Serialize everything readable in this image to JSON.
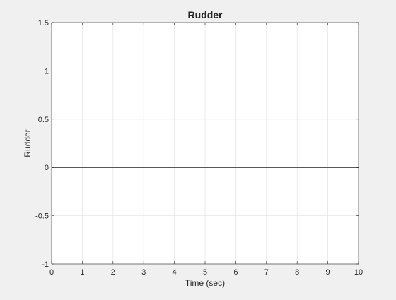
{
  "chart_data": {
    "type": "line",
    "title": "Rudder",
    "xlabel": "Time (sec)",
    "ylabel": "Rudder",
    "xlim": [
      0,
      10
    ],
    "ylim": [
      -1,
      1.5
    ],
    "x_ticks": [
      0,
      1,
      2,
      3,
      4,
      5,
      6,
      7,
      8,
      9,
      10
    ],
    "x_tick_labels": [
      "0",
      "1",
      "2",
      "3",
      "4",
      "5",
      "6",
      "7",
      "8",
      "9",
      "10"
    ],
    "y_ticks": [
      -1,
      -0.5,
      0,
      0.5,
      1,
      1.5
    ],
    "y_tick_labels": [
      "-1",
      "-0.5",
      "0",
      "0.5",
      "1",
      "1.5"
    ],
    "grid": true,
    "legend": false,
    "series": [
      {
        "color": "#0072bd",
        "x": [
          0,
          10
        ],
        "y": [
          0,
          0
        ]
      }
    ]
  }
}
